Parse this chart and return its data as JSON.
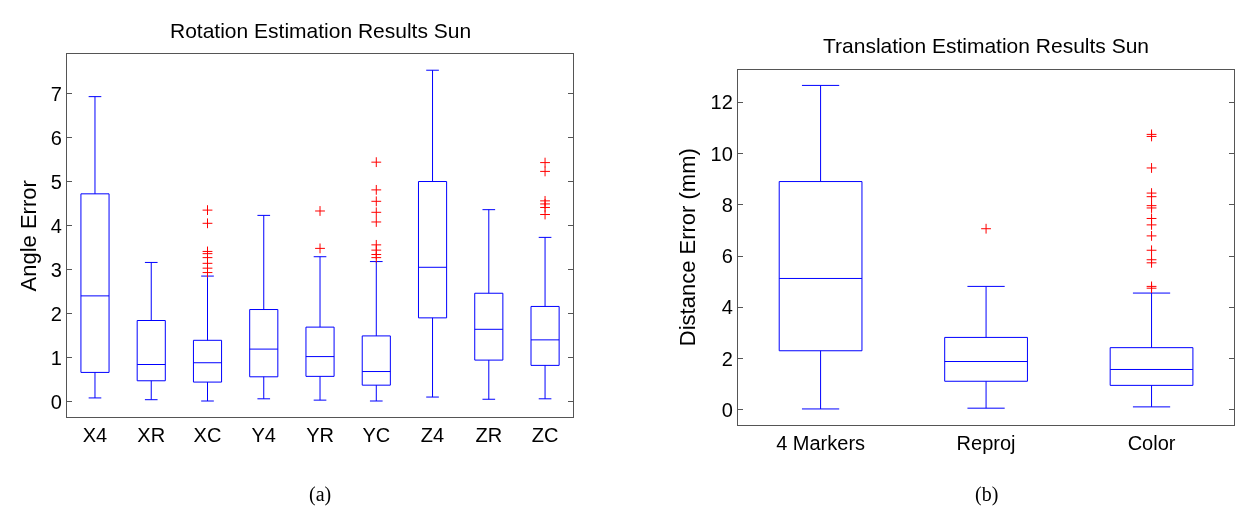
{
  "chart_data": [
    {
      "type": "box",
      "title": "Rotation Estimation Results Sun",
      "ylabel": "Angle Error",
      "annotations": [
        "(a)"
      ],
      "categories": [
        "X4",
        "XR",
        "XC",
        "Y4",
        "YR",
        "YC",
        "Z4",
        "ZR",
        "ZC"
      ],
      "ylim": [
        -0.35,
        7.9
      ],
      "yticks": [
        0,
        1,
        2,
        3,
        4,
        5,
        6,
        7
      ],
      "series": [
        {
          "color": "#0000ff",
          "boxes": [
            {
              "low": 0.09,
              "q1": 0.67,
              "median": 2.41,
              "q3": 4.73,
              "high": 6.94
            },
            {
              "low": 0.05,
              "q1": 0.48,
              "median": 0.85,
              "q3": 1.85,
              "high": 3.17
            },
            {
              "low": 0.02,
              "q1": 0.45,
              "median": 0.89,
              "q3": 1.4,
              "high": 2.86,
              "outliers": [
                4.36,
                4.06,
                3.42,
                3.37,
                3.28,
                3.15,
                3.04,
                2.94
              ]
            },
            {
              "low": 0.07,
              "q1": 0.57,
              "median": 1.2,
              "q3": 2.1,
              "high": 4.24
            },
            {
              "low": 0.04,
              "q1": 0.58,
              "median": 1.03,
              "q3": 1.7,
              "high": 3.3,
              "outliers": [
                4.34,
                3.49
              ]
            },
            {
              "low": 0.02,
              "q1": 0.38,
              "median": 0.69,
              "q3": 1.5,
              "high": 3.19,
              "outliers": [
                5.45,
                4.82,
                4.56,
                4.31,
                4.09,
                3.57,
                3.45,
                3.35,
                3.28
              ]
            },
            {
              "low": 0.11,
              "q1": 1.91,
              "median": 3.06,
              "q3": 5.01,
              "high": 7.54
            },
            {
              "low": 0.06,
              "q1": 0.95,
              "median": 1.65,
              "q3": 2.47,
              "high": 4.37
            },
            {
              "low": 0.07,
              "q1": 0.83,
              "median": 1.41,
              "q3": 2.17,
              "high": 3.74,
              "outliers": [
                5.44,
                5.24,
                4.57,
                4.5,
                4.42,
                4.26
              ]
            }
          ]
        }
      ]
    },
    {
      "type": "box",
      "title": "Translation Estimation Results Sun",
      "ylabel": "Distance Error (mm)",
      "annotations": [
        "(b)"
      ],
      "categories": [
        "4 Markers",
        "Reproj",
        "Color"
      ],
      "ylim": [
        -0.58,
        13.28
      ],
      "yticks": [
        0,
        2,
        4,
        6,
        8,
        10,
        12
      ],
      "series": [
        {
          "color": "#0000ff",
          "boxes": [
            {
              "low": 0.04,
              "q1": 2.31,
              "median": 5.13,
              "q3": 8.91,
              "high": 12.66
            },
            {
              "low": 0.07,
              "q1": 1.12,
              "median": 1.89,
              "q3": 2.83,
              "high": 4.82,
              "outliers": [
                7.07
              ]
            },
            {
              "low": 0.12,
              "q1": 0.96,
              "median": 1.58,
              "q3": 2.43,
              "high": 4.56,
              "outliers": [
                10.75,
                10.67,
                9.44,
                8.46,
                8.32,
                7.97,
                7.88,
                7.47,
                7.22,
                6.79,
                6.23,
                5.86,
                5.74,
                4.82,
                4.75
              ]
            }
          ]
        }
      ]
    }
  ]
}
